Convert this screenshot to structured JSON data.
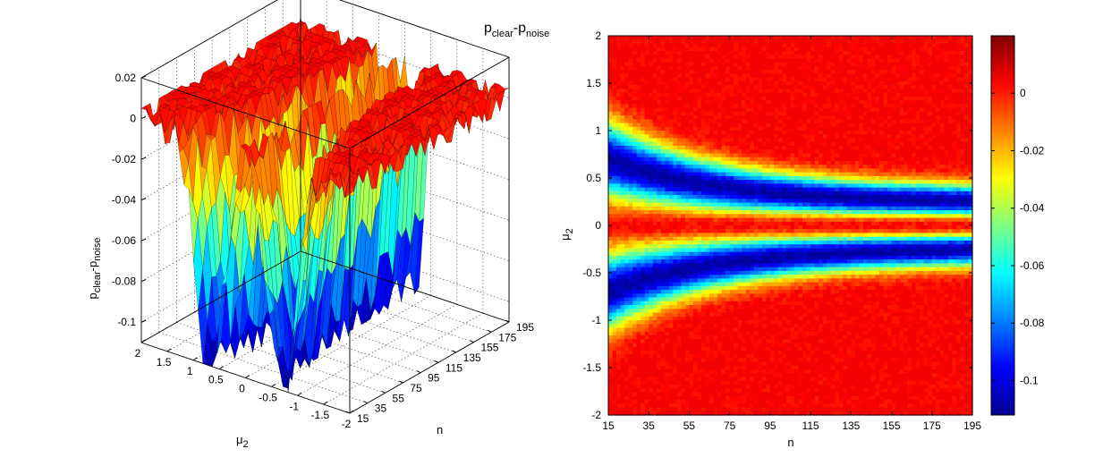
{
  "figure_title": {
    "main": "p",
    "sub1": "clear",
    "dash": "-p",
    "sub2": "noise"
  },
  "colormap": [
    "#00008f",
    "#0000ff",
    "#0080ff",
    "#00ffff",
    "#80ff80",
    "#ffff00",
    "#ff8000",
    "#ff0000",
    "#800000"
  ],
  "chart_data": [
    {
      "type": "surface",
      "zlabel": {
        "main": "p",
        "sub1": "clear",
        "dash": "-p",
        "sub2": "noise"
      },
      "xlabel": {
        "main": "μ",
        "sub": "2"
      },
      "ylabel": "n",
      "x_ticks": [
        "2",
        "1.5",
        "1",
        "0.5",
        "0",
        "-0.5",
        "-1",
        "-1.5",
        "-2"
      ],
      "y_ticks": [
        "15",
        "35",
        "55",
        "75",
        "95",
        "115",
        "135",
        "155",
        "175",
        "195"
      ],
      "z_ticks": [
        "0.02",
        "0",
        "-0.02",
        "-0.04",
        "-0.06",
        "-0.08",
        "-0.1"
      ],
      "xlim": [
        -2,
        2
      ],
      "ylim": [
        15,
        195
      ],
      "zlim": [
        -0.11,
        0.02
      ],
      "grid": true
    },
    {
      "type": "heatmap",
      "xlabel": "n",
      "ylabel": {
        "main": "μ",
        "sub": "2"
      },
      "x_ticks": [
        "15",
        "35",
        "55",
        "75",
        "95",
        "115",
        "135",
        "155",
        "175",
        "195"
      ],
      "y_ticks": [
        "2",
        "1.5",
        "1",
        "0.5",
        "0",
        "-0.5",
        "-1",
        "-1.5",
        "-2"
      ],
      "colorbar_ticks": [
        "0",
        "-0.02",
        "-0.04",
        "-0.06",
        "-0.08",
        "-0.1"
      ],
      "xlim": [
        15,
        195
      ],
      "ylim": [
        -2,
        2
      ],
      "clim": [
        -0.112,
        0.02
      ],
      "value_range": [
        -0.11,
        0.005
      ],
      "band_center_mu_at_n15": 0.7,
      "band_center_mu_at_n195": 0.24
    }
  ]
}
